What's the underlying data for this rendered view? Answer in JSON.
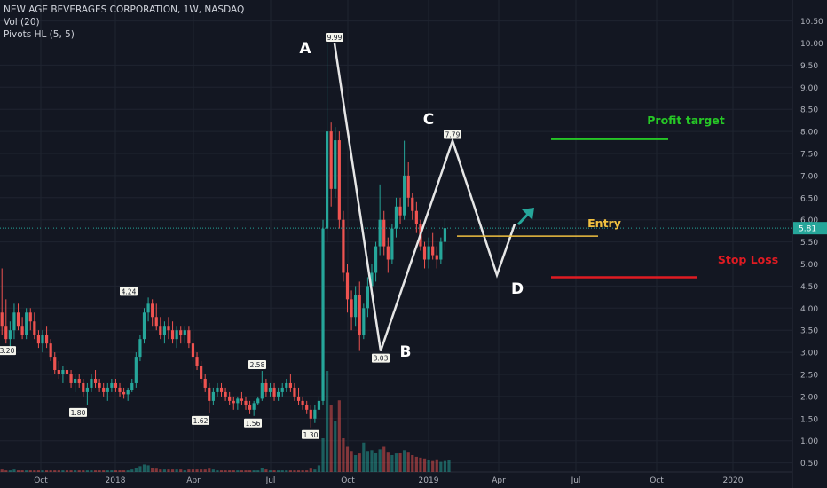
{
  "legend": {
    "title": "NEW AGE BEVERAGES CORPORATION, 1W, NASDAQ",
    "vol": "Vol (20)",
    "pivots": "Pivots HL (5, 5)"
  },
  "chart_data": {
    "type": "candlestick",
    "y_ticks": [
      "10.50",
      "10.00",
      "9.50",
      "9.00",
      "8.50",
      "8.00",
      "7.50",
      "7.00",
      "6.50",
      "6.00",
      "5.50",
      "5.00",
      "4.50",
      "4.00",
      "3.50",
      "3.00",
      "2.50",
      "2.00",
      "1.50",
      "1.00",
      "0.50"
    ],
    "x_ticks": [
      "Oct",
      "2018",
      "Apr",
      "Jul",
      "Oct",
      "2019",
      "Apr",
      "Jul",
      "Oct",
      "2020"
    ],
    "last_price": "5.81",
    "pivot_labels": [
      {
        "text": "3.20",
        "price": 3.2
      },
      {
        "text": "4.24",
        "price": 4.24
      },
      {
        "text": "1.80",
        "price": 1.8
      },
      {
        "text": "1.62",
        "price": 1.62
      },
      {
        "text": "2.58",
        "price": 2.58
      },
      {
        "text": "1.56",
        "price": 1.56
      },
      {
        "text": "1.30",
        "price": 1.3
      },
      {
        "text": "9.99",
        "price": 9.99
      },
      {
        "text": "3.03",
        "price": 3.03
      },
      {
        "text": "7.79",
        "price": 7.79
      }
    ],
    "pattern_points": [
      {
        "label": "A",
        "price": 9.99
      },
      {
        "label": "B",
        "price": 3.03
      },
      {
        "label": "C",
        "price": 7.79
      },
      {
        "label": "D",
        "price": 4.75
      }
    ],
    "levels": [
      {
        "label": "Profit target",
        "price": 7.83,
        "color": "#26c726"
      },
      {
        "label": "Entry",
        "price": 5.63,
        "color": "#f0c040"
      },
      {
        "label": "Stop Loss",
        "price": 4.7,
        "color": "#e01b22"
      }
    ],
    "ohlc": [
      [
        3.9,
        4.9,
        3.4,
        3.6
      ],
      [
        3.6,
        4.2,
        3.2,
        3.3
      ],
      [
        3.3,
        3.7,
        3.0,
        3.5
      ],
      [
        3.5,
        4.1,
        3.3,
        3.9
      ],
      [
        3.9,
        4.1,
        3.5,
        3.6
      ],
      [
        3.6,
        3.8,
        3.3,
        3.4
      ],
      [
        3.4,
        4.0,
        3.3,
        3.9
      ],
      [
        3.9,
        4.0,
        3.5,
        3.7
      ],
      [
        3.7,
        3.9,
        3.3,
        3.4
      ],
      [
        3.4,
        3.5,
        3.1,
        3.2
      ],
      [
        3.2,
        3.5,
        3.0,
        3.4
      ],
      [
        3.4,
        3.6,
        3.1,
        3.2
      ],
      [
        3.2,
        3.3,
        2.8,
        2.9
      ],
      [
        2.9,
        3.0,
        2.5,
        2.6
      ],
      [
        2.6,
        2.8,
        2.4,
        2.5
      ],
      [
        2.5,
        2.7,
        2.3,
        2.6
      ],
      [
        2.6,
        2.7,
        2.4,
        2.5
      ],
      [
        2.5,
        2.6,
        2.2,
        2.3
      ],
      [
        2.3,
        2.5,
        2.1,
        2.4
      ],
      [
        2.4,
        2.5,
        2.2,
        2.3
      ],
      [
        2.3,
        2.4,
        2.0,
        2.1
      ],
      [
        2.1,
        2.3,
        1.8,
        2.2
      ],
      [
        2.2,
        2.5,
        2.1,
        2.4
      ],
      [
        2.4,
        2.6,
        2.2,
        2.3
      ],
      [
        2.3,
        2.4,
        2.1,
        2.2
      ],
      [
        2.2,
        2.3,
        2.0,
        2.1
      ],
      [
        2.1,
        2.3,
        1.9,
        2.2
      ],
      [
        2.2,
        2.4,
        2.1,
        2.3
      ],
      [
        2.3,
        2.4,
        2.1,
        2.2
      ],
      [
        2.2,
        2.3,
        2.0,
        2.1
      ],
      [
        2.1,
        2.2,
        1.95,
        2.05
      ],
      [
        2.05,
        2.2,
        1.9,
        2.15
      ],
      [
        2.15,
        2.4,
        2.1,
        2.3
      ],
      [
        2.3,
        3.0,
        2.2,
        2.9
      ],
      [
        2.9,
        3.4,
        2.8,
        3.3
      ],
      [
        3.3,
        4.0,
        3.2,
        3.9
      ],
      [
        3.9,
        4.24,
        3.7,
        4.1
      ],
      [
        4.1,
        4.2,
        3.6,
        3.8
      ],
      [
        3.8,
        4.1,
        3.5,
        3.6
      ],
      [
        3.6,
        3.8,
        3.3,
        3.4
      ],
      [
        3.4,
        3.7,
        3.2,
        3.6
      ],
      [
        3.6,
        3.8,
        3.3,
        3.5
      ],
      [
        3.5,
        3.7,
        3.2,
        3.3
      ],
      [
        3.3,
        3.6,
        3.1,
        3.5
      ],
      [
        3.5,
        3.6,
        3.2,
        3.4
      ],
      [
        3.4,
        3.6,
        3.2,
        3.5
      ],
      [
        3.5,
        3.6,
        3.1,
        3.2
      ],
      [
        3.2,
        3.3,
        2.8,
        2.9
      ],
      [
        2.9,
        3.0,
        2.6,
        2.7
      ],
      [
        2.7,
        2.8,
        2.3,
        2.4
      ],
      [
        2.4,
        2.5,
        2.1,
        2.2
      ],
      [
        2.2,
        2.3,
        1.62,
        1.9
      ],
      [
        1.9,
        2.2,
        1.8,
        2.1
      ],
      [
        2.1,
        2.3,
        2.0,
        2.2
      ],
      [
        2.2,
        2.3,
        2.0,
        2.1
      ],
      [
        2.1,
        2.2,
        1.9,
        2.0
      ],
      [
        2.0,
        2.1,
        1.8,
        1.9
      ],
      [
        1.9,
        2.0,
        1.7,
        1.85
      ],
      [
        1.85,
        2.0,
        1.7,
        1.95
      ],
      [
        1.95,
        2.1,
        1.8,
        1.9
      ],
      [
        1.9,
        2.0,
        1.7,
        1.8
      ],
      [
        1.8,
        1.9,
        1.6,
        1.7
      ],
      [
        1.7,
        1.9,
        1.56,
        1.85
      ],
      [
        1.85,
        2.0,
        1.8,
        1.95
      ],
      [
        1.95,
        2.58,
        1.9,
        2.3
      ],
      [
        2.3,
        2.4,
        2.0,
        2.1
      ],
      [
        2.1,
        2.3,
        2.0,
        2.2
      ],
      [
        2.2,
        2.3,
        1.9,
        2.0
      ],
      [
        2.0,
        2.2,
        1.9,
        2.1
      ],
      [
        2.1,
        2.3,
        2.0,
        2.2
      ],
      [
        2.2,
        2.4,
        2.1,
        2.3
      ],
      [
        2.3,
        2.5,
        2.1,
        2.2
      ],
      [
        2.2,
        2.3,
        1.9,
        2.0
      ],
      [
        2.0,
        2.2,
        1.8,
        1.9
      ],
      [
        1.9,
        2.0,
        1.7,
        1.8
      ],
      [
        1.8,
        1.9,
        1.6,
        1.7
      ],
      [
        1.7,
        1.8,
        1.3,
        1.5
      ],
      [
        1.5,
        1.8,
        1.4,
        1.7
      ],
      [
        1.7,
        2.0,
        1.6,
        1.9
      ],
      [
        1.9,
        6.0,
        1.8,
        5.8
      ],
      [
        5.8,
        9.99,
        5.5,
        8.0
      ],
      [
        8.0,
        8.2,
        6.3,
        6.7
      ],
      [
        6.7,
        8.1,
        6.5,
        7.8
      ],
      [
        7.8,
        8.0,
        5.8,
        6.0
      ],
      [
        6.0,
        6.2,
        4.6,
        4.8
      ],
      [
        4.8,
        5.0,
        3.9,
        4.2
      ],
      [
        4.2,
        4.4,
        3.5,
        3.8
      ],
      [
        3.8,
        4.5,
        3.6,
        4.3
      ],
      [
        4.3,
        4.6,
        3.03,
        3.4
      ],
      [
        3.4,
        4.1,
        3.3,
        4.0
      ],
      [
        4.0,
        4.7,
        3.8,
        4.5
      ],
      [
        4.5,
        5.0,
        4.3,
        4.8
      ],
      [
        4.8,
        5.5,
        4.6,
        5.4
      ],
      [
        5.4,
        6.8,
        5.2,
        6.0
      ],
      [
        6.0,
        6.2,
        5.2,
        5.4
      ],
      [
        5.4,
        5.6,
        4.8,
        5.1
      ],
      [
        5.1,
        5.9,
        5.0,
        5.8
      ],
      [
        5.8,
        6.5,
        5.6,
        6.3
      ],
      [
        6.3,
        6.5,
        5.9,
        6.1
      ],
      [
        6.1,
        7.79,
        6.0,
        7.0
      ],
      [
        7.0,
        7.3,
        6.3,
        6.5
      ],
      [
        6.5,
        6.6,
        6.0,
        6.2
      ],
      [
        6.2,
        6.4,
        5.7,
        5.9
      ],
      [
        5.9,
        6.0,
        5.3,
        5.4
      ],
      [
        5.4,
        5.5,
        4.9,
        5.1
      ],
      [
        5.1,
        5.6,
        4.9,
        5.4
      ],
      [
        5.4,
        5.7,
        5.1,
        5.2
      ],
      [
        5.2,
        5.4,
        4.9,
        5.1
      ],
      [
        5.1,
        5.6,
        5.0,
        5.5
      ],
      [
        5.5,
        6.0,
        5.3,
        5.81
      ]
    ],
    "volume": [
      0.3,
      0.2,
      0.2,
      0.3,
      0.2,
      0.2,
      0.2,
      0.2,
      0.2,
      0.2,
      0.2,
      0.2,
      0.2,
      0.2,
      0.2,
      0.2,
      0.2,
      0.2,
      0.2,
      0.2,
      0.2,
      0.2,
      0.2,
      0.2,
      0.2,
      0.2,
      0.2,
      0.2,
      0.2,
      0.2,
      0.2,
      0.2,
      0.3,
      0.5,
      0.7,
      0.9,
      0.8,
      0.5,
      0.4,
      0.3,
      0.3,
      0.3,
      0.3,
      0.3,
      0.3,
      0.2,
      0.3,
      0.3,
      0.3,
      0.3,
      0.3,
      0.4,
      0.3,
      0.2,
      0.2,
      0.2,
      0.2,
      0.2,
      0.2,
      0.2,
      0.2,
      0.2,
      0.2,
      0.2,
      0.5,
      0.3,
      0.2,
      0.2,
      0.2,
      0.2,
      0.2,
      0.2,
      0.2,
      0.2,
      0.2,
      0.2,
      0.4,
      0.3,
      0.8,
      4.0,
      12.0,
      8.0,
      6.0,
      8.5,
      4.0,
      3.0,
      2.5,
      2.0,
      2.2,
      3.5,
      2.5,
      2.6,
      2.3,
      2.7,
      3.0,
      2.4,
      2.0,
      2.2,
      2.3,
      2.6,
      2.4,
      2.0,
      1.8,
      1.7,
      1.6,
      1.4,
      1.3,
      1.5,
      1.2,
      1.3,
      1.4
    ]
  }
}
